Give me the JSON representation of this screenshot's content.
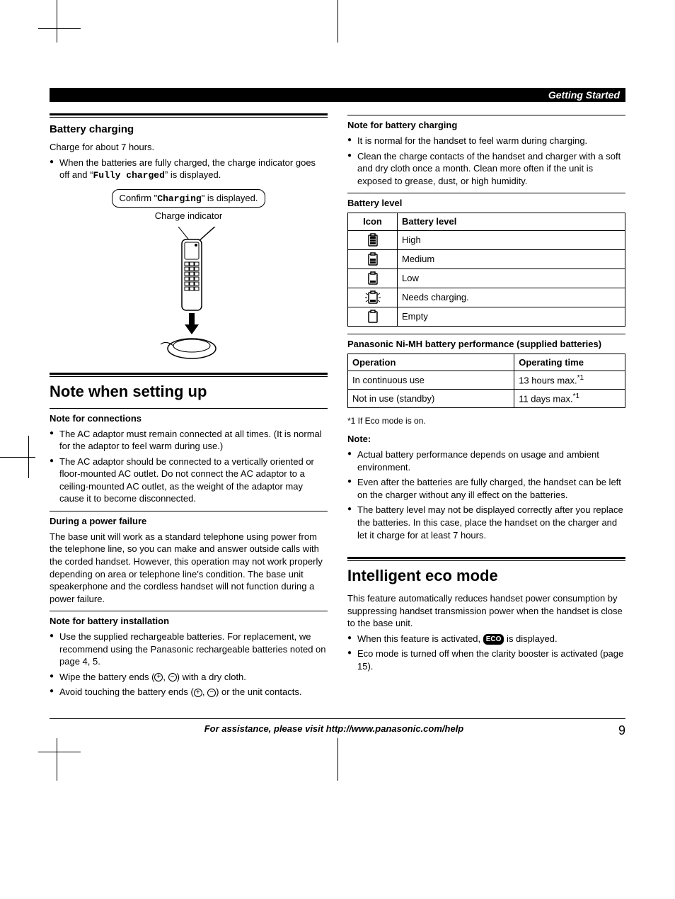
{
  "header": {
    "section": "Getting Started"
  },
  "left": {
    "battery_charging": {
      "title": "Battery charging",
      "intro": "Charge for about 7 hours.",
      "bullet1_a": "When the batteries are fully charged, the charge indicator goes off and “",
      "bullet1_mono": "Fully charged",
      "bullet1_b": "” is displayed.",
      "callout_a": "Confirm \"",
      "callout_mono": "Charging",
      "callout_b": "\" is displayed.",
      "ci_label": "Charge indicator"
    },
    "note_setup_title": "Note when setting up",
    "note_connections": {
      "title": "Note for connections",
      "b1": "The AC adaptor must remain connected at all times. (It is normal for the adaptor to feel warm during use.)",
      "b2": "The AC adaptor should be connected to a vertically oriented or floor-mounted AC outlet. Do not connect the AC adaptor to a ceiling-mounted AC outlet, as the weight of the adaptor may cause it to become disconnected."
    },
    "power_failure": {
      "title": "During a power failure",
      "body": "The base unit will work as a standard telephone using power from the telephone line, so you can make and answer outside calls with the corded handset. However, this operation may not work properly depending on area or telephone line’s condition. The base unit speakerphone and the cordless handset will not function during a power failure."
    },
    "battery_install": {
      "title": "Note for battery installation",
      "b1": "Use the supplied rechargeable batteries. For replacement, we recommend using the Panasonic rechargeable batteries noted on page 4, 5.",
      "b2_a": "Wipe the battery ends (",
      "b2_b": ") with a dry cloth.",
      "b3_a": "Avoid touching the battery ends (",
      "b3_b": ") or the unit contacts."
    }
  },
  "right": {
    "note_charging": {
      "title": "Note for battery charging",
      "b1": "It is normal for the handset to feel warm during charging.",
      "b2": "Clean the charge contacts of the handset and charger with a soft and dry cloth once a month. Clean more often if the unit is exposed to grease, dust, or high humidity."
    },
    "battery_level": {
      "title": "Battery level",
      "header_icon": "Icon",
      "header_level": "Battery level",
      "rows": [
        {
          "level": "High",
          "bars": 3,
          "blink": false
        },
        {
          "level": "Medium",
          "bars": 2,
          "blink": false
        },
        {
          "level": "Low",
          "bars": 1,
          "blink": false
        },
        {
          "level": "Needs charging.",
          "bars": 1,
          "blink": true
        },
        {
          "level": "Empty",
          "bars": 0,
          "blink": false
        }
      ]
    },
    "performance": {
      "title": "Panasonic Ni-MH battery performance (supplied batteries)",
      "header_op": "Operation",
      "header_time": "Operating time",
      "rows": [
        {
          "op": "In continuous use",
          "time": "13 hours max.",
          "note": "*1"
        },
        {
          "op": "Not in use (standby)",
          "time": "11 days max.",
          "note": "*1"
        }
      ],
      "footnote": "*1  If Eco mode is on."
    },
    "note_block": {
      "title": "Note:",
      "b1": "Actual battery performance depends on usage and ambient environment.",
      "b2": "Even after the batteries are fully charged, the handset can be left on the charger without any ill effect on the batteries.",
      "b3": "The battery level may not be displayed correctly after you replace the batteries. In this case, place the handset on the charger and let it charge for at least 7 hours."
    },
    "eco": {
      "title": "Intelligent eco mode",
      "body": "This feature automatically reduces handset power consumption by suppressing handset transmission power when the handset is close to the base unit.",
      "b1_a": "When this feature is activated, ",
      "b1_badge": "ECO",
      "b1_b": " is displayed.",
      "b2": "Eco mode is turned off when the clarity booster is activated (page 15)."
    }
  },
  "footer": {
    "assist": "For assistance, please visit http://www.panasonic.com/help",
    "page": "9"
  },
  "colors": {
    "text": "#000000",
    "bg": "#ffffff",
    "header_bg": "#000000",
    "header_fg": "#ffffff"
  }
}
